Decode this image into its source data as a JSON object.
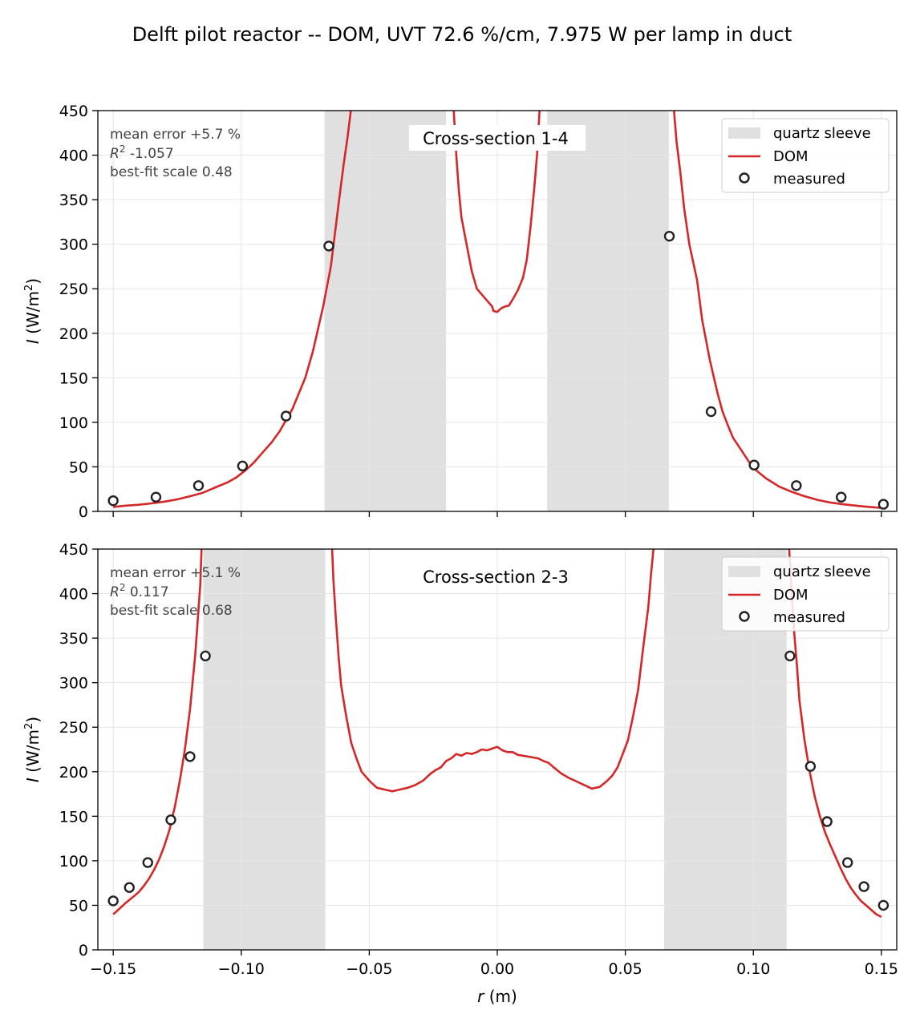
{
  "figure": {
    "suptitle": "Delft pilot reactor -- DOM, UVT 72.6 %/cm, 7.975 W per lamp in duct",
    "xlabel": "(m)",
    "xlabel_var": "r",
    "ylabel_var": "I",
    "ylabel_unit": "(W/m",
    "ylabel_sup": "2",
    "ylabel_close": ")"
  },
  "colors": {
    "dom_line": "#d62728",
    "sleeve_fill": "#e0e0e0",
    "marker_edge": "#222222",
    "grid": "#e6e6e6",
    "annotation": "#444444"
  },
  "chart_data": [
    {
      "type": "line",
      "title": "Cross-section 1-4",
      "xlim": [
        -0.156,
        0.156
      ],
      "ylim": [
        0,
        450
      ],
      "xticks": [
        -0.15,
        -0.1,
        -0.05,
        0.0,
        0.05,
        0.1,
        0.15
      ],
      "xtick_labels": [
        "−0.15",
        "−0.10",
        "−0.05",
        "0.00",
        "0.05",
        "0.10",
        "0.15"
      ],
      "yticks": [
        0,
        50,
        100,
        150,
        200,
        250,
        300,
        350,
        400,
        450
      ],
      "ytick_labels": [
        "0",
        "50",
        "100",
        "150",
        "200",
        "250",
        "300",
        "350",
        "400",
        "450"
      ],
      "show_xtick_labels": false,
      "grid": true,
      "legend_position": "top-right",
      "legend": [
        "quartz sleeve",
        "DOM",
        "measured"
      ],
      "annotations": {
        "mean_error": "mean error +5.7 %",
        "r2_label": "R",
        "r2_sup": "2",
        "r2_value": " -1.057",
        "best_fit": "best-fit scale 0.48"
      },
      "sleeves": [
        [
          -0.0675,
          -0.02
        ],
        [
          0.0195,
          0.067
        ]
      ],
      "dom_segments": [
        [
          [
            -0.15,
            5
          ],
          [
            -0.145,
            6.5
          ],
          [
            -0.14,
            7.5
          ],
          [
            -0.135,
            9
          ],
          [
            -0.13,
            11
          ],
          [
            -0.125,
            13.5
          ],
          [
            -0.12,
            17
          ],
          [
            -0.115,
            21
          ],
          [
            -0.11,
            27
          ],
          [
            -0.105,
            33
          ],
          [
            -0.102,
            38
          ],
          [
            -0.098,
            47
          ],
          [
            -0.095,
            55
          ],
          [
            -0.092,
            65
          ],
          [
            -0.088,
            78
          ],
          [
            -0.085,
            90
          ],
          [
            -0.08,
            115
          ],
          [
            -0.075,
            150
          ],
          [
            -0.072,
            180
          ],
          [
            -0.068,
            230
          ],
          [
            -0.065,
            275
          ],
          [
            -0.062,
            345
          ],
          [
            -0.06,
            390
          ],
          [
            -0.0585,
            420
          ],
          [
            -0.0572,
            450
          ]
        ],
        [
          [
            -0.017,
            450
          ],
          [
            -0.016,
            400
          ],
          [
            -0.015,
            360
          ],
          [
            -0.014,
            330
          ],
          [
            -0.012,
            300
          ],
          [
            -0.01,
            270
          ],
          [
            -0.008,
            250
          ],
          [
            -0.005,
            240
          ],
          [
            -0.002,
            230
          ],
          [
            -0.0015,
            225
          ],
          [
            0.0,
            224
          ],
          [
            0.0015,
            228
          ],
          [
            0.003,
            230
          ],
          [
            0.0045,
            231
          ],
          [
            0.006,
            238
          ],
          [
            0.008,
            248
          ],
          [
            0.01,
            262
          ],
          [
            0.0115,
            282
          ],
          [
            0.013,
            320
          ],
          [
            0.0145,
            365
          ],
          [
            0.0155,
            400
          ],
          [
            0.0165,
            450
          ]
        ],
        [
          [
            0.069,
            450
          ],
          [
            0.07,
            415
          ],
          [
            0.0715,
            380
          ],
          [
            0.073,
            340
          ],
          [
            0.075,
            300
          ],
          [
            0.078,
            260
          ],
          [
            0.08,
            215
          ],
          [
            0.083,
            170
          ],
          [
            0.086,
            133
          ],
          [
            0.088,
            112
          ],
          [
            0.09,
            97
          ],
          [
            0.092,
            83
          ],
          [
            0.095,
            70
          ],
          [
            0.098,
            57
          ],
          [
            0.1,
            49
          ],
          [
            0.102,
            44
          ],
          [
            0.105,
            37
          ],
          [
            0.11,
            28
          ],
          [
            0.115,
            22
          ],
          [
            0.12,
            17
          ],
          [
            0.125,
            13
          ],
          [
            0.13,
            10
          ],
          [
            0.135,
            8
          ],
          [
            0.14,
            6.5
          ],
          [
            0.145,
            5
          ],
          [
            0.15,
            4
          ]
        ]
      ],
      "measured": {
        "x": [
          -0.15,
          -0.1333,
          -0.1167,
          -0.0995,
          -0.0825,
          -0.0658,
          0.0672,
          0.0835,
          0.1003,
          0.1168,
          0.1343,
          0.1508
        ],
        "y": [
          12,
          16,
          29,
          51,
          107,
          298,
          309,
          112,
          52,
          29,
          16,
          8
        ]
      }
    },
    {
      "type": "line",
      "title": "Cross-section 2-3",
      "xlim": [
        -0.156,
        0.156
      ],
      "ylim": [
        0,
        450
      ],
      "xticks": [
        -0.15,
        -0.1,
        -0.05,
        0.0,
        0.05,
        0.1,
        0.15
      ],
      "xtick_labels": [
        "−0.15",
        "−0.10",
        "−0.05",
        "0.00",
        "0.05",
        "0.10",
        "0.15"
      ],
      "yticks": [
        0,
        50,
        100,
        150,
        200,
        250,
        300,
        350,
        400,
        450
      ],
      "ytick_labels": [
        "0",
        "50",
        "100",
        "150",
        "200",
        "250",
        "300",
        "350",
        "400",
        "450"
      ],
      "show_xtick_labels": true,
      "grid": true,
      "legend_position": "top-right",
      "legend": [
        "quartz sleeve",
        "DOM",
        "measured"
      ],
      "annotations": {
        "mean_error": "mean error +5.1 %",
        "r2_label": "R",
        "r2_sup": "2",
        "r2_value": " 0.117",
        "best_fit": "best-fit scale 0.68"
      },
      "sleeves": [
        [
          -0.1148,
          -0.0672
        ],
        [
          0.0652,
          0.113
        ]
      ],
      "dom_segments": [
        [
          [
            -0.15,
            40
          ],
          [
            -0.148,
            45
          ],
          [
            -0.145,
            53
          ],
          [
            -0.142,
            60
          ],
          [
            -0.14,
            65
          ],
          [
            -0.138,
            72
          ],
          [
            -0.136,
            80
          ],
          [
            -0.134,
            90
          ],
          [
            -0.132,
            102
          ],
          [
            -0.13,
            117
          ],
          [
            -0.128,
            135
          ],
          [
            -0.126,
            160
          ],
          [
            -0.124,
            190
          ],
          [
            -0.122,
            225
          ],
          [
            -0.12,
            270
          ],
          [
            -0.118,
            330
          ],
          [
            -0.117,
            370
          ],
          [
            -0.116,
            410
          ],
          [
            -0.1155,
            450
          ]
        ],
        [
          [
            -0.0645,
            450
          ],
          [
            -0.064,
            415
          ],
          [
            -0.063,
            370
          ],
          [
            -0.062,
            330
          ],
          [
            -0.061,
            297
          ],
          [
            -0.059,
            262
          ],
          [
            -0.057,
            232
          ],
          [
            -0.055,
            215
          ],
          [
            -0.053,
            200
          ],
          [
            -0.05,
            190
          ],
          [
            -0.047,
            182
          ],
          [
            -0.044,
            180
          ],
          [
            -0.041,
            178
          ],
          [
            -0.038,
            180
          ],
          [
            -0.035,
            182
          ],
          [
            -0.032,
            185
          ],
          [
            -0.029,
            190
          ],
          [
            -0.026,
            198
          ],
          [
            -0.024,
            202
          ],
          [
            -0.022,
            205
          ],
          [
            -0.02,
            212
          ],
          [
            -0.018,
            215
          ],
          [
            -0.016,
            220
          ],
          [
            -0.014,
            218
          ],
          [
            -0.012,
            221
          ],
          [
            -0.01,
            220
          ],
          [
            -0.008,
            222
          ],
          [
            -0.006,
            225
          ],
          [
            -0.004,
            224
          ],
          [
            -0.002,
            226
          ],
          [
            0.0,
            228
          ],
          [
            0.002,
            224
          ],
          [
            0.004,
            222
          ],
          [
            0.006,
            222
          ],
          [
            0.008,
            219
          ],
          [
            0.01,
            218
          ],
          [
            0.012,
            217
          ],
          [
            0.014,
            216
          ],
          [
            0.016,
            215
          ],
          [
            0.018,
            212
          ],
          [
            0.02,
            210
          ],
          [
            0.022,
            205
          ],
          [
            0.025,
            198
          ],
          [
            0.028,
            193
          ],
          [
            0.031,
            189
          ],
          [
            0.034,
            185
          ],
          [
            0.037,
            181
          ],
          [
            0.04,
            183
          ],
          [
            0.043,
            190
          ],
          [
            0.045,
            196
          ],
          [
            0.047,
            205
          ],
          [
            0.049,
            220
          ],
          [
            0.051,
            235
          ],
          [
            0.053,
            262
          ],
          [
            0.055,
            292
          ],
          [
            0.057,
            340
          ],
          [
            0.059,
            385
          ],
          [
            0.06,
            420
          ],
          [
            0.061,
            450
          ]
        ],
        [
          [
            0.114,
            450
          ],
          [
            0.115,
            400
          ],
          [
            0.116,
            355
          ],
          [
            0.117,
            320
          ],
          [
            0.118,
            280
          ],
          [
            0.12,
            235
          ],
          [
            0.122,
            200
          ],
          [
            0.124,
            172
          ],
          [
            0.126,
            150
          ],
          [
            0.128,
            132
          ],
          [
            0.13,
            118
          ],
          [
            0.132,
            105
          ],
          [
            0.134,
            92
          ],
          [
            0.136,
            80
          ],
          [
            0.138,
            70
          ],
          [
            0.14,
            62
          ],
          [
            0.142,
            55
          ],
          [
            0.144,
            50
          ],
          [
            0.146,
            45
          ],
          [
            0.148,
            40
          ],
          [
            0.15,
            37
          ]
        ]
      ],
      "measured": {
        "x": [
          -0.15,
          -0.1437,
          -0.1365,
          -0.1275,
          -0.12,
          -0.114,
          0.1143,
          0.1223,
          0.1288,
          0.1368,
          0.1432,
          0.1508
        ],
        "y": [
          55,
          70,
          98,
          146,
          217,
          330,
          330,
          206,
          144,
          98,
          71,
          50
        ]
      }
    }
  ]
}
